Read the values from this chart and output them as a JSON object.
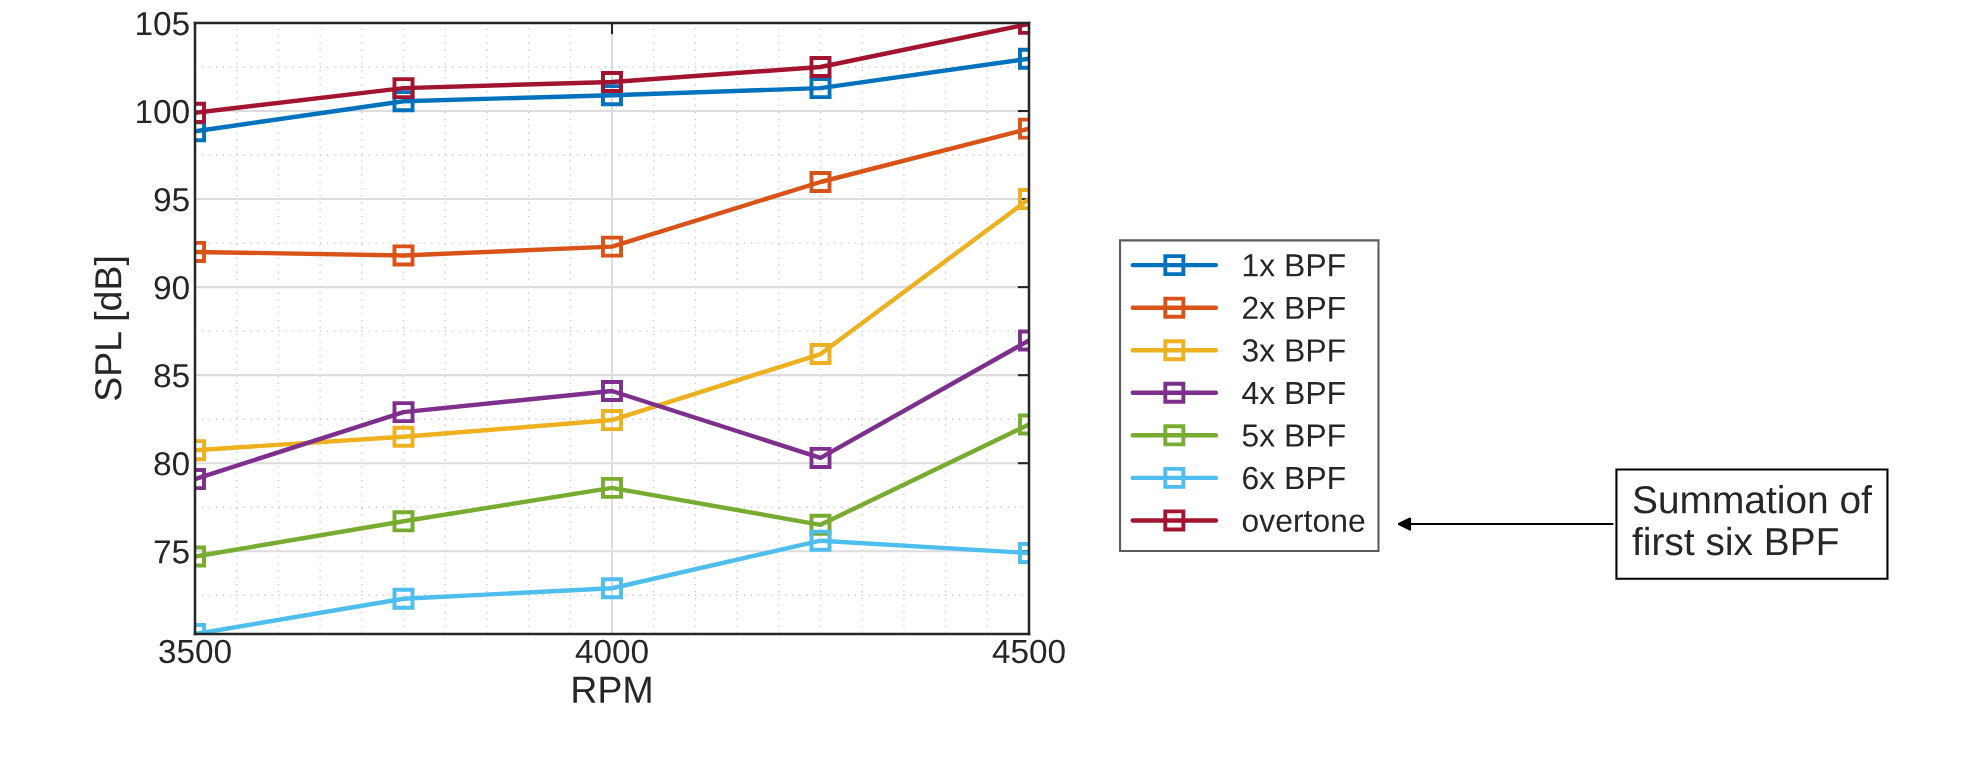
{
  "chart_data": {
    "type": "line",
    "xlabel": "RPM",
    "ylabel": "SPL [dB]",
    "x": [
      3500,
      3750,
      4000,
      4250,
      4500
    ],
    "xlim": [
      3500,
      4500
    ],
    "xticks": [
      3500,
      4000,
      4500
    ],
    "ylim": [
      70.3,
      105
    ],
    "yticks": [
      75,
      80,
      85,
      90,
      95,
      100,
      105
    ],
    "grid": true,
    "legend": "right",
    "marker": "square",
    "line_style": "solid",
    "series": [
      {
        "name": "1x BPF",
        "color": "#0072bd",
        "values": [
          98.85,
          100.56,
          100.9,
          101.3,
          102.97
        ]
      },
      {
        "name": "2x BPF",
        "color": "#d95319",
        "values": [
          92.0,
          91.8,
          92.3,
          95.97,
          99.0
        ]
      },
      {
        "name": "3x BPF",
        "color": "#edb120",
        "values": [
          80.74,
          81.5,
          82.45,
          86.2,
          95.0
        ]
      },
      {
        "name": "4x BPF",
        "color": "#7e2f8e",
        "values": [
          79.1,
          82.9,
          84.1,
          80.3,
          86.97
        ]
      },
      {
        "name": "5x BPF",
        "color": "#77ac30",
        "values": [
          74.7,
          76.7,
          78.6,
          76.5,
          82.2
        ]
      },
      {
        "name": "6x BPF",
        "color": "#4dbeee",
        "values": [
          70.3,
          72.3,
          72.9,
          75.6,
          74.9
        ]
      },
      {
        "name": "overtone",
        "color": "#a2142f",
        "values": [
          99.9,
          101.3,
          101.65,
          102.5,
          104.95
        ]
      }
    ],
    "annotations": [
      "Summation of\nfirst six BPF"
    ]
  }
}
